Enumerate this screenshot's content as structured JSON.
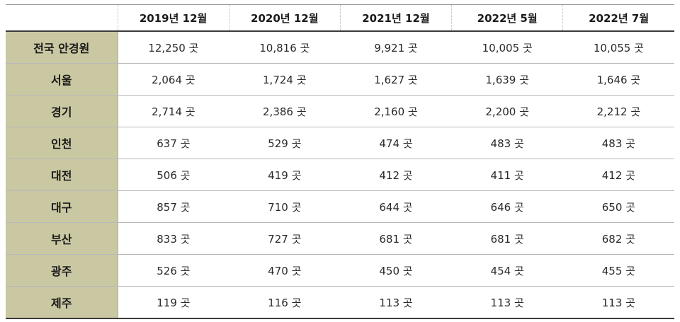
{
  "table": {
    "corner": "",
    "columns": [
      "2019년 12월",
      "2020년 12월",
      "2021년 12월",
      "2022년 5월",
      "2022년 7월"
    ],
    "rows": [
      {
        "label": "전국 안경원",
        "values": [
          "12,250 곳",
          "10,816 곳",
          "9,921 곳",
          "10,005 곳",
          "10,055 곳"
        ]
      },
      {
        "label": "서울",
        "values": [
          "2,064 곳",
          "1,724 곳",
          "1,627 곳",
          "1,639 곳",
          "1,646 곳"
        ]
      },
      {
        "label": "경기",
        "values": [
          "2,714 곳",
          "2,386 곳",
          "2,160 곳",
          "2,200 곳",
          "2,212 곳"
        ]
      },
      {
        "label": "인천",
        "values": [
          "637 곳",
          "529 곳",
          "474 곳",
          "483 곳",
          "483 곳"
        ]
      },
      {
        "label": "대전",
        "values": [
          "506 곳",
          "419 곳",
          "412 곳",
          "411 곳",
          "412 곳"
        ]
      },
      {
        "label": "대구",
        "values": [
          "857 곳",
          "710 곳",
          "644 곳",
          "646 곳",
          "650 곳"
        ]
      },
      {
        "label": "부산",
        "values": [
          "833 곳",
          "727 곳",
          "681 곳",
          "681 곳",
          "682 곳"
        ]
      },
      {
        "label": "광주",
        "values": [
          "526 곳",
          "470 곳",
          "450 곳",
          "454 곳",
          "455 곳"
        ]
      },
      {
        "label": "제주",
        "values": [
          "119 곳",
          "116 곳",
          "113 곳",
          "113 곳",
          "113 곳"
        ]
      }
    ]
  },
  "colors": {
    "label_background": "#cac8a3",
    "rule_dark": "#3a3a3a",
    "rule_light": "#b8b8b8"
  }
}
